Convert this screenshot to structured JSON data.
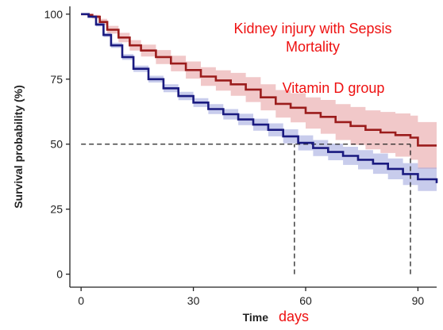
{
  "chart_data": {
    "type": "line",
    "subtype": "kaplan-meier",
    "title": "",
    "xlabel": "Time",
    "xlabel_suffix": "days",
    "ylabel": "Survival probability (%)",
    "xlim": [
      -3,
      95
    ],
    "ylim": [
      -5,
      103
    ],
    "xticks": [
      0,
      30,
      60,
      90
    ],
    "yticks": [
      0,
      25,
      50,
      75,
      100
    ],
    "grid": false,
    "annotations": [
      {
        "text": "Kidney injury with Sepsis",
        "color": "#ee1111"
      },
      {
        "text": "Mortality",
        "color": "#ee1111"
      },
      {
        "text": "Vitamin D group",
        "color": "#ee1111"
      }
    ],
    "reference_lines": [
      {
        "kind": "horizontal",
        "y": 50,
        "x_from": 0,
        "x_to": 88
      },
      {
        "kind": "vertical",
        "x": 57,
        "y_from": 0,
        "y_to": 50
      },
      {
        "kind": "vertical",
        "x": 88,
        "y_from": 0,
        "y_to": 50
      }
    ],
    "series": [
      {
        "color": "#9b1c1c",
        "band_color": "#e8a3a5",
        "x": [
          0,
          1,
          2,
          3,
          5,
          7,
          10,
          13,
          16,
          20,
          24,
          28,
          32,
          36,
          40,
          44,
          48,
          52,
          56,
          60,
          64,
          68,
          72,
          76,
          80,
          84,
          88,
          90,
          95
        ],
        "y": [
          100,
          100,
          99.7,
          99,
          97,
          94,
          91,
          88,
          86,
          83.5,
          81,
          78.5,
          76,
          74.5,
          73,
          71,
          68,
          65.5,
          64,
          62,
          60.5,
          58.5,
          57,
          55.5,
          54.5,
          53.5,
          52.5,
          49.5,
          49.5
        ],
        "lower": [
          100,
          100,
          99.4,
          98.3,
          95.8,
          92.5,
          89.2,
          86,
          83.7,
          80.8,
          78,
          75.2,
          72.4,
          70.6,
          68.6,
          66.2,
          63,
          60.2,
          58.4,
          56,
          54,
          51.6,
          49.7,
          48,
          46.6,
          45.2,
          44,
          40.5,
          40.5
        ],
        "upper": [
          100,
          100,
          100,
          99.7,
          98.2,
          95.5,
          92.8,
          90,
          88.3,
          86.2,
          84,
          81.8,
          79.6,
          78.4,
          77.4,
          75.8,
          73,
          70.8,
          69.6,
          68,
          67,
          65.4,
          64.3,
          63,
          62.4,
          61.8,
          61,
          58.5,
          58.5
        ]
      },
      {
        "color": "#1a1a80",
        "band_color": "#a4aae0",
        "x": [
          0,
          1,
          2,
          4,
          6,
          8,
          11,
          14,
          18,
          22,
          26,
          30,
          34,
          38,
          42,
          46,
          50,
          54,
          58,
          62,
          66,
          70,
          74,
          78,
          82,
          86,
          90,
          95
        ],
        "y": [
          100,
          100,
          99,
          96,
          92,
          88,
          83.5,
          79,
          75,
          71.5,
          68.5,
          66,
          63.5,
          61.5,
          59.5,
          57.5,
          55.5,
          53,
          50.5,
          48.5,
          47,
          45.5,
          44,
          42.5,
          40.5,
          38.5,
          36.5,
          35
        ],
        "lower": [
          100,
          100,
          98.6,
          95.3,
          91.2,
          87,
          82.4,
          77.8,
          73.7,
          70,
          66.9,
          64.3,
          61.6,
          59.5,
          57.3,
          55.2,
          53,
          50.3,
          47.6,
          45.4,
          43.8,
          42,
          40.3,
          38.6,
          36.5,
          34.3,
          32,
          30.5
        ],
        "upper": [
          100,
          100,
          99.4,
          96.7,
          92.8,
          89,
          84.6,
          80.2,
          76.3,
          73,
          70.1,
          67.7,
          65.4,
          63.5,
          61.7,
          59.8,
          58,
          55.7,
          53.4,
          51.6,
          50.2,
          49,
          47.7,
          46.4,
          44.5,
          42.7,
          41,
          39.5
        ]
      }
    ]
  }
}
